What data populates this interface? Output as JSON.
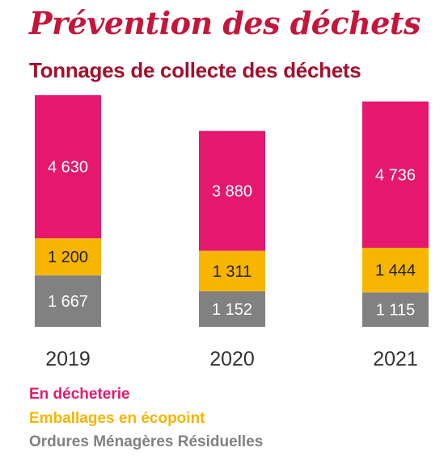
{
  "header": {
    "title": "Prévention des déchets",
    "subtitle": "Tonnages de collecte des déchets"
  },
  "colors": {
    "title": "#c5153a",
    "subtitle": "#a50f2d",
    "decheterie": "#e6186d",
    "emballages": "#f7b500",
    "ordures": "#818181",
    "year_label": "#333333"
  },
  "chart_data": {
    "type": "bar",
    "stacked": true,
    "categories": [
      "2019",
      "2020",
      "2021"
    ],
    "series": [
      {
        "name": "Ordures Ménagères Résiduelles",
        "values": [
          1667,
          1152,
          1115
        ],
        "labels": [
          "1 667",
          "1 152",
          "1 115"
        ]
      },
      {
        "name": "Emballages en écopoint",
        "values": [
          1200,
          1311,
          1444
        ],
        "labels": [
          "1 200",
          "1 311",
          "1 444"
        ]
      },
      {
        "name": "En décheterie",
        "values": [
          4630,
          3880,
          4736
        ],
        "labels": [
          "4 630",
          "3 880",
          "4 736"
        ]
      }
    ],
    "legend": [
      "En décheterie",
      "Emballages en écopoint",
      "Ordures Ménagères Résiduelles"
    ],
    "ylim": [
      0,
      7497
    ],
    "grid": false,
    "xlabel": "",
    "ylabel": ""
  }
}
